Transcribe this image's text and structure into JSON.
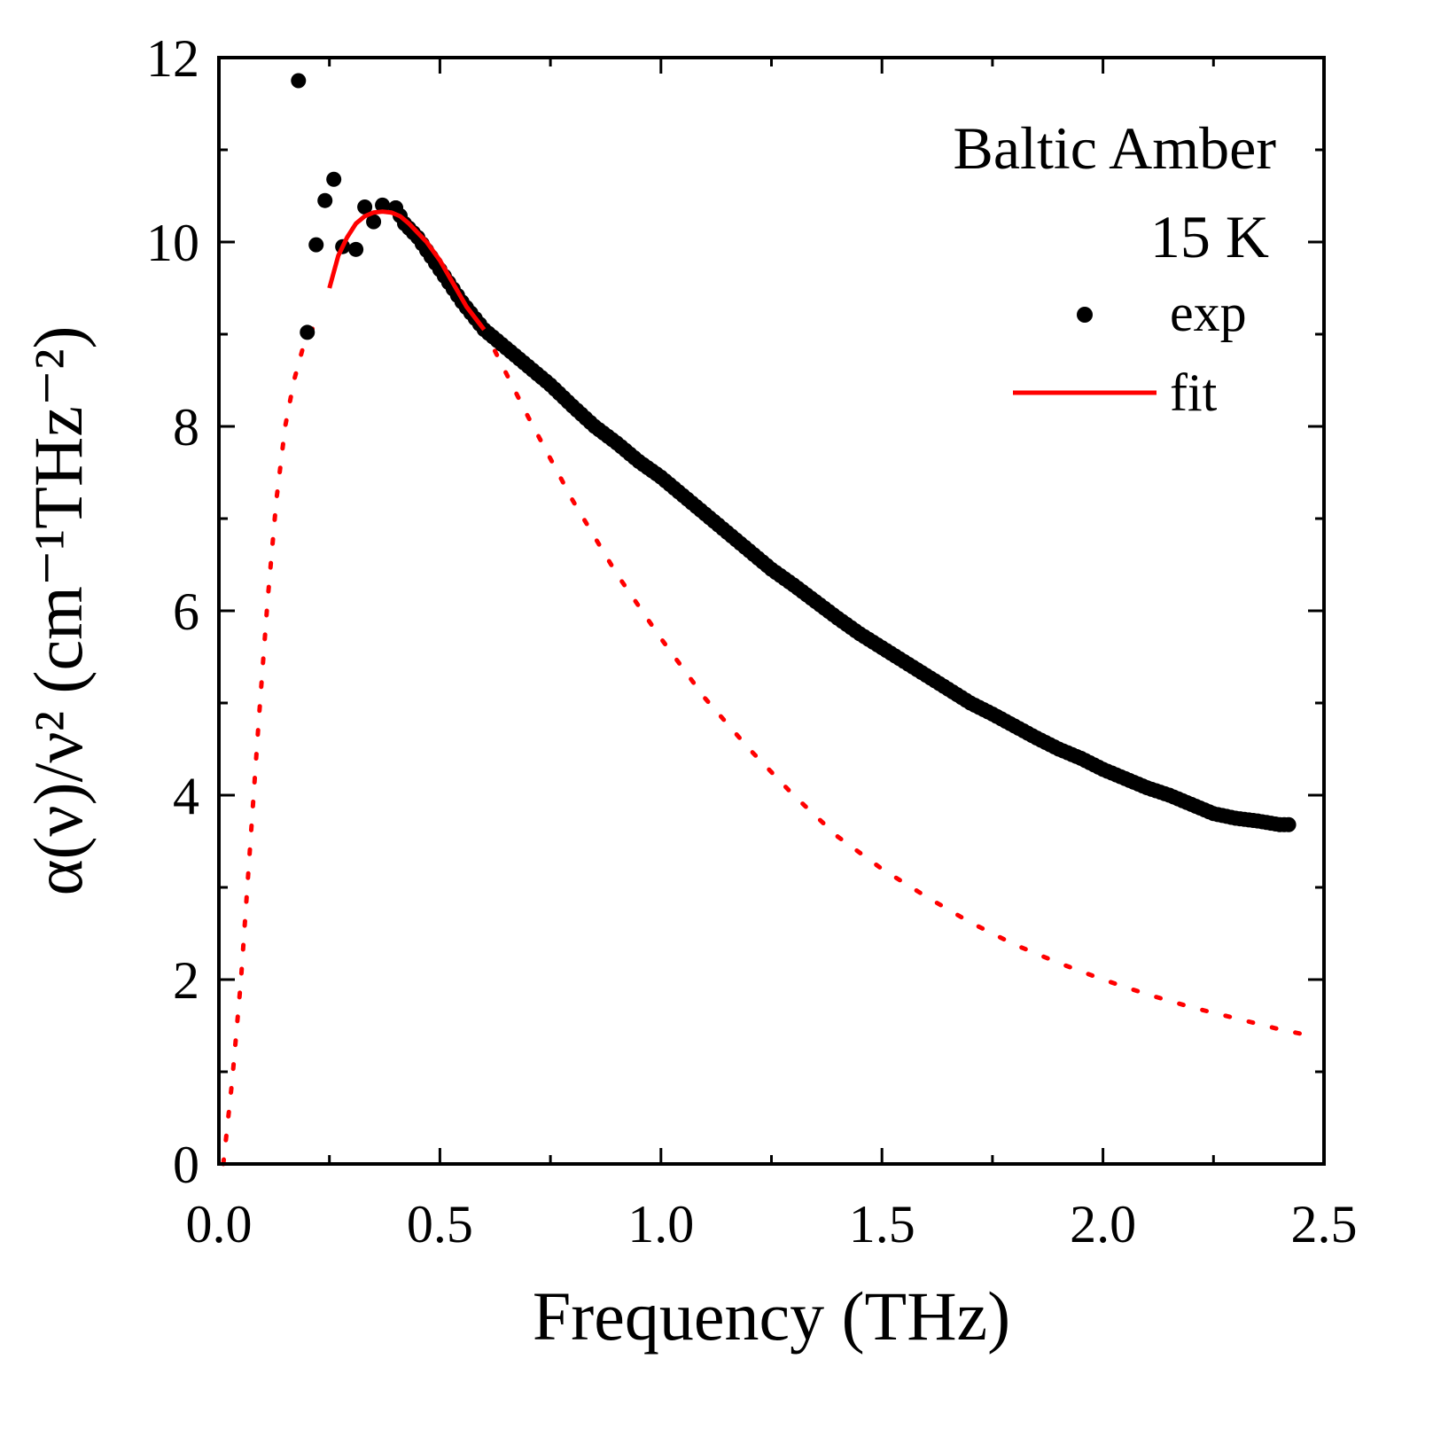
{
  "chart_data": {
    "type": "scatter",
    "xlabel": "Frequency (THz)",
    "ylabel": "α(ν)/ν² (cm⁻¹THz⁻²)",
    "xlim": [
      0.0,
      2.5
    ],
    "ylim": [
      0,
      12
    ],
    "xticks": [
      "0.0",
      "0.5",
      "1.0",
      "1.5",
      "2.0",
      "2.5"
    ],
    "yticks": [
      "0",
      "2",
      "4",
      "6",
      "8",
      "10",
      "12"
    ],
    "grid": false,
    "legend_position": "top-right",
    "annotations": [
      "Baltic Amber",
      "15 K"
    ],
    "series": [
      {
        "name": "exp",
        "style": "points",
        "color": "#000000",
        "x": [
          0.18,
          0.2,
          0.22,
          0.24,
          0.26,
          0.28,
          0.31,
          0.33,
          0.35,
          0.37,
          0.4,
          0.42,
          0.45,
          0.5,
          0.55,
          0.6,
          0.65,
          0.7,
          0.75,
          0.8,
          0.85,
          0.9,
          0.95,
          1.0,
          1.05,
          1.1,
          1.15,
          1.2,
          1.25,
          1.3,
          1.35,
          1.4,
          1.45,
          1.5,
          1.55,
          1.6,
          1.65,
          1.7,
          1.75,
          1.8,
          1.85,
          1.9,
          1.95,
          2.0,
          2.05,
          2.1,
          2.15,
          2.2,
          2.25,
          2.3,
          2.35,
          2.4,
          2.42
        ],
        "y": [
          11.75,
          9.02,
          9.97,
          10.45,
          10.68,
          9.95,
          9.92,
          10.38,
          10.22,
          10.4,
          10.37,
          10.2,
          10.05,
          9.7,
          9.35,
          9.05,
          8.85,
          8.65,
          8.45,
          8.22,
          8.0,
          7.82,
          7.62,
          7.45,
          7.25,
          7.05,
          6.85,
          6.65,
          6.45,
          6.28,
          6.1,
          5.92,
          5.75,
          5.6,
          5.45,
          5.3,
          5.15,
          5.0,
          4.88,
          4.75,
          4.62,
          4.5,
          4.4,
          4.28,
          4.18,
          4.08,
          4.0,
          3.9,
          3.8,
          3.75,
          3.72,
          3.68,
          3.68
        ]
      },
      {
        "name": "fit",
        "style": "solid line",
        "color": "#ff0000",
        "x": [
          0.25,
          0.27,
          0.29,
          0.31,
          0.33,
          0.35,
          0.37,
          0.39,
          0.41,
          0.43,
          0.45,
          0.47,
          0.5,
          0.53,
          0.56,
          0.6
        ],
        "y": [
          9.5,
          9.85,
          10.05,
          10.2,
          10.28,
          10.32,
          10.33,
          10.32,
          10.28,
          10.2,
          10.1,
          10.0,
          9.8,
          9.55,
          9.3,
          9.05
        ]
      },
      {
        "style": "dotted line",
        "color": "#ff0000",
        "x": [
          0.01,
          0.03,
          0.05,
          0.07,
          0.09,
          0.11,
          0.13,
          0.15,
          0.17,
          0.19,
          0.21,
          0.23,
          0.6,
          0.7,
          0.8,
          0.9,
          1.0,
          1.1,
          1.2,
          1.3,
          1.4,
          1.5,
          1.6,
          1.7,
          1.8,
          1.9,
          2.0,
          2.1,
          2.2,
          2.3,
          2.4,
          2.46
        ],
        "y": [
          0.0,
          0.9,
          2.0,
          3.4,
          4.8,
          6.1,
          7.2,
          8.0,
          8.5,
          8.85,
          9.05,
          9.15,
          9.05,
          8.1,
          7.2,
          6.4,
          5.7,
          5.05,
          4.5,
          4.0,
          3.55,
          3.2,
          2.9,
          2.62,
          2.38,
          2.18,
          2.0,
          1.84,
          1.7,
          1.58,
          1.46,
          1.4
        ]
      }
    ]
  }
}
